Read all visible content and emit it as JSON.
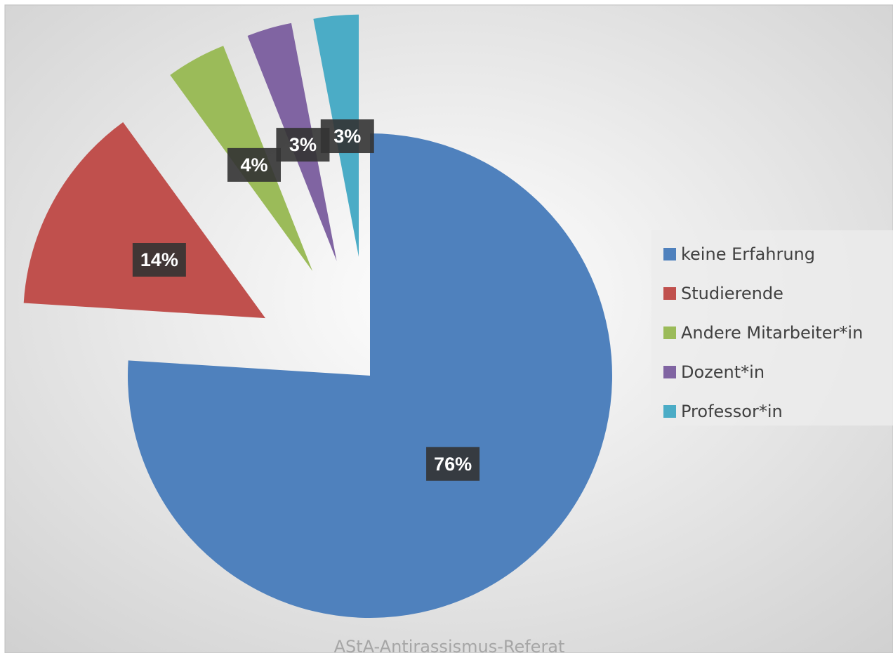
{
  "chart_data": {
    "type": "pie",
    "categories": [
      "keine Erfahrung",
      "Studierende",
      "Andere Mitarbeiter*in",
      "Dozent*in",
      "Professor*in"
    ],
    "values": [
      76,
      14,
      4,
      3,
      3
    ],
    "value_labels": [
      "76%",
      "14%",
      "4%",
      "3%",
      "3%"
    ],
    "colors": [
      "#4f81bd",
      "#c0504d",
      "#9bbb59",
      "#8064a2",
      "#4bacc6"
    ],
    "legend": "right",
    "footer": "AStA-Antirassismus-Referat"
  }
}
